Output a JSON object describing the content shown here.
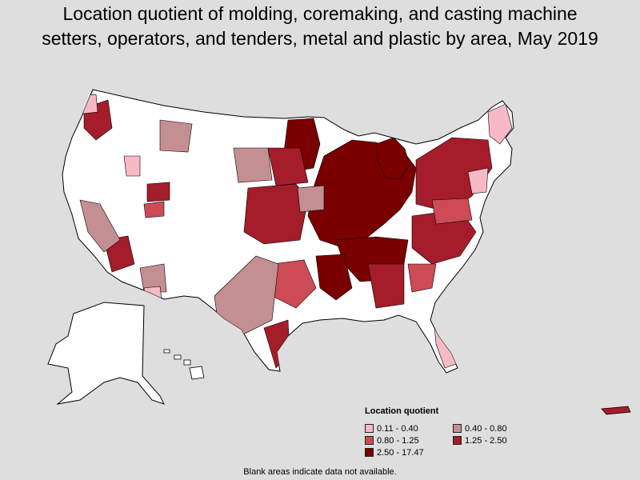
{
  "title": {
    "line1": "Location quotient of molding, coremaking, and casting machine",
    "line2": "setters, operators, and tenders, metal and plastic by area, May 2019"
  },
  "legend": {
    "title": "Location quotient",
    "items": [
      {
        "label": "0.11 - 0.40",
        "color": "#f7b9c5"
      },
      {
        "label": "0.40 - 0.80",
        "color": "#c48f93"
      },
      {
        "label": "0.80 - 1.25",
        "color": "#cd4b55"
      },
      {
        "label": "1.25 - 2.50",
        "color": "#a51c2a"
      },
      {
        "label": "2.50 - 17.47",
        "color": "#7a0000"
      }
    ]
  },
  "footnote": "Blank areas indicate data not available.",
  "colors": {
    "background": "#dedede",
    "no_data": "#ffffff",
    "border": "#000000"
  }
}
